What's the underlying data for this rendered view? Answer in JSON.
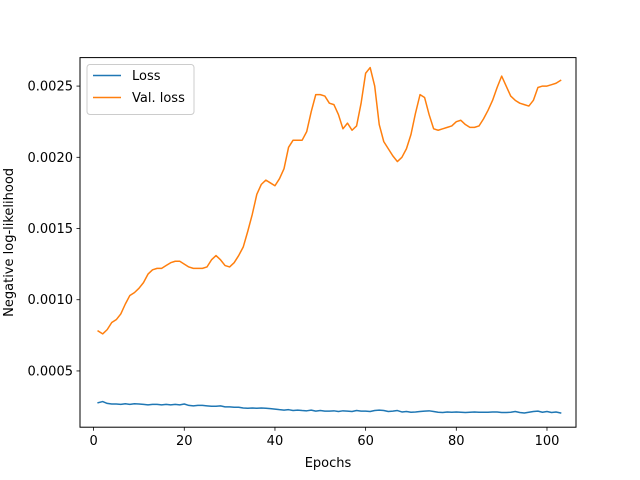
{
  "chart_data": {
    "type": "line",
    "title": "",
    "xlabel": "Epochs",
    "ylabel": "Negative log-likelihood",
    "xlim": [
      -3,
      106.4
    ],
    "ylim": [
      0.000105,
      0.0027
    ],
    "xticks": [
      0,
      20,
      40,
      60,
      80,
      100
    ],
    "yticks": [
      0.0005,
      0.001,
      0.0015,
      0.002,
      0.0025
    ],
    "ytick_labels": [
      "0.0005",
      "0.0010",
      "0.0015",
      "0.0020",
      "0.0025"
    ],
    "grid": false,
    "legend_position": "top-left",
    "x": [
      1,
      2,
      3,
      4,
      5,
      6,
      7,
      8,
      9,
      10,
      11,
      12,
      13,
      14,
      15,
      16,
      17,
      18,
      19,
      20,
      21,
      22,
      23,
      24,
      25,
      26,
      27,
      28,
      29,
      30,
      31,
      32,
      33,
      34,
      35,
      36,
      37,
      38,
      39,
      40,
      41,
      42,
      43,
      44,
      45,
      46,
      47,
      48,
      49,
      50,
      51,
      52,
      53,
      54,
      55,
      56,
      57,
      58,
      59,
      60,
      61,
      62,
      63,
      64,
      65,
      66,
      67,
      68,
      69,
      70,
      71,
      72,
      73,
      74,
      75,
      76,
      77,
      78,
      79,
      80,
      81,
      82,
      83,
      84,
      85,
      86,
      87,
      88,
      89,
      90,
      91,
      92,
      93,
      94,
      95,
      96,
      97,
      98,
      99,
      100,
      101,
      102,
      103
    ],
    "series": [
      {
        "name": "Loss",
        "color": "#1f77b4",
        "values": [
          0.000277,
          0.000285,
          0.000272,
          0.000268,
          0.000268,
          0.000265,
          0.00027,
          0.000265,
          0.00027,
          0.000268,
          0.000265,
          0.000262,
          0.000265,
          0.000265,
          0.000262,
          0.000265,
          0.000262,
          0.000265,
          0.000262,
          0.000268,
          0.000258,
          0.000255,
          0.000258,
          0.000258,
          0.000255,
          0.000252,
          0.000252,
          0.000255,
          0.000248,
          0.000248,
          0.000245,
          0.000245,
          0.00024,
          0.000238,
          0.00024,
          0.000238,
          0.00024,
          0.000238,
          0.000235,
          0.000232,
          0.000228,
          0.000225,
          0.000228,
          0.000222,
          0.000225,
          0.000222,
          0.00022,
          0.000225,
          0.000218,
          0.000222,
          0.000218,
          0.000218,
          0.00022,
          0.000215,
          0.00022,
          0.000218,
          0.000215,
          0.000222,
          0.000218,
          0.000218,
          0.000215,
          0.000222,
          0.000225,
          0.000222,
          0.000215,
          0.000218,
          0.000222,
          0.000212,
          0.000215,
          0.00021,
          0.000212,
          0.000215,
          0.000218,
          0.00022,
          0.000215,
          0.00021,
          0.000208,
          0.000212,
          0.00021,
          0.000212,
          0.00021,
          0.000208,
          0.00021,
          0.000212,
          0.00021,
          0.00021,
          0.00021,
          0.000212,
          0.000212,
          0.000208,
          0.000208,
          0.00021,
          0.000215,
          0.000208,
          0.000205,
          0.00021,
          0.000215,
          0.000218,
          0.00021,
          0.000215,
          0.000208,
          0.000212,
          0.000205
        ]
      },
      {
        "name": "Val. loss",
        "color": "#ff7f0e",
        "values": [
          0.00078,
          0.00076,
          0.00079,
          0.00084,
          0.00086,
          0.0009,
          0.00097,
          0.00103,
          0.00105,
          0.00108,
          0.00112,
          0.00118,
          0.00121,
          0.00122,
          0.00122,
          0.00124,
          0.00126,
          0.00127,
          0.00127,
          0.00125,
          0.00123,
          0.00122,
          0.00122,
          0.00122,
          0.00123,
          0.00128,
          0.00131,
          0.00128,
          0.00124,
          0.00123,
          0.00126,
          0.00131,
          0.00137,
          0.00148,
          0.0016,
          0.00174,
          0.00181,
          0.00184,
          0.00182,
          0.0018,
          0.00185,
          0.00192,
          0.00207,
          0.00212,
          0.00212,
          0.00212,
          0.00218,
          0.00232,
          0.00244,
          0.00244,
          0.00243,
          0.00238,
          0.00237,
          0.0023,
          0.0022,
          0.00224,
          0.00219,
          0.00222,
          0.00238,
          0.00259,
          0.00263,
          0.0025,
          0.00223,
          0.00211,
          0.00206,
          0.00201,
          0.00197,
          0.002,
          0.00206,
          0.00216,
          0.00231,
          0.00244,
          0.00242,
          0.0023,
          0.0022,
          0.00219,
          0.0022,
          0.00221,
          0.00222,
          0.00225,
          0.00226,
          0.00223,
          0.00221,
          0.00221,
          0.00222,
          0.00227,
          0.00233,
          0.0024,
          0.00249,
          0.00257,
          0.0025,
          0.00243,
          0.0024,
          0.00238,
          0.00237,
          0.00236,
          0.0024,
          0.00249,
          0.0025,
          0.0025,
          0.00251,
          0.00252,
          0.00254
        ]
      }
    ]
  }
}
